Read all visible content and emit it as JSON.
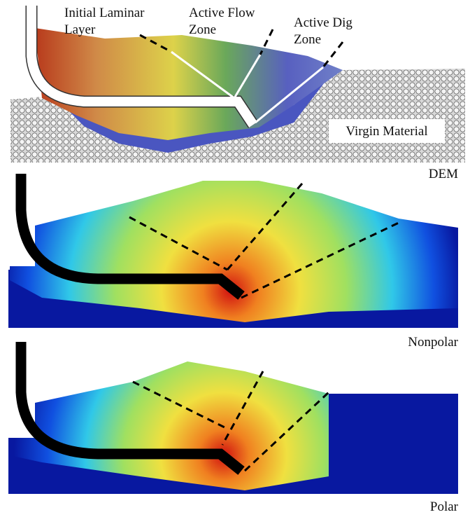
{
  "panels": [
    {
      "caption": "DEM",
      "annotations": [
        {
          "lines": [
            "Initial Laminar",
            "Layer"
          ]
        },
        {
          "lines": [
            "Active Flow",
            "Zone"
          ]
        },
        {
          "lines": [
            "Active Dig",
            "Zone"
          ]
        },
        {
          "lines": [
            "Virgin Material"
          ]
        }
      ]
    },
    {
      "caption": "Nonpolar"
    },
    {
      "caption": "Polar"
    }
  ]
}
